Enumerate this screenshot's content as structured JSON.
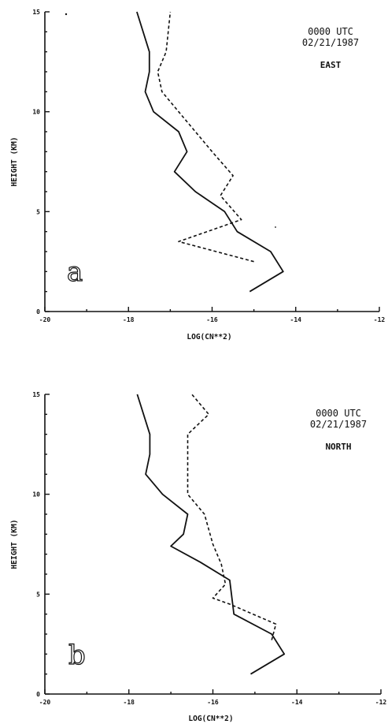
{
  "chart_data": [
    {
      "type": "line",
      "panel_label": "a",
      "annotation": [
        "0000 UTC",
        "02/21/1987",
        "EAST"
      ],
      "xlabel": "LOG(CN**2)",
      "ylabel": "HEIGHT (KM)",
      "xlim": [
        -20,
        -12
      ],
      "ylim": [
        0,
        15
      ],
      "xticks": [
        -20,
        -18,
        -16,
        -14,
        -12
      ],
      "xtick_labels": [
        "-20",
        "-18",
        "-16",
        "-14",
        "-12"
      ],
      "yticks": [
        0,
        5,
        10,
        15
      ],
      "ytick_labels": [
        "0",
        "5",
        "10",
        "15"
      ],
      "grid": false,
      "series": [
        {
          "style": "solid",
          "x": [
            -15.1,
            -14.3,
            -14.6,
            -15.4,
            -15.7,
            -16.4,
            -16.9,
            -16.6,
            -16.8,
            -17.4,
            -17.6,
            -17.5,
            -17.5,
            -17.8
          ],
          "y": [
            1,
            2,
            3,
            4,
            5,
            6,
            7,
            8,
            9,
            10,
            11,
            12,
            13,
            15
          ]
        },
        {
          "style": "dashed",
          "x": [
            -15.0,
            -16.8,
            -15.3,
            -15.8,
            -15.5,
            -16.0,
            -16.4,
            -16.8,
            -17.2,
            -17.3,
            -17.1,
            -17.0
          ],
          "y": [
            2.5,
            3.5,
            4.6,
            5.8,
            6.8,
            8,
            9,
            10,
            11,
            12,
            13,
            15
          ]
        }
      ]
    },
    {
      "type": "line",
      "panel_label": "b",
      "annotation": [
        "0000 UTC",
        "02/21/1987",
        "NORTH"
      ],
      "xlabel": "LOG(CN**2)",
      "ylabel": "HEIGHT (KM)",
      "xlim": [
        -20,
        -12
      ],
      "ylim": [
        0,
        15
      ],
      "xticks": [
        -20,
        -18,
        -16,
        -14,
        -12
      ],
      "xtick_labels": [
        "-20",
        "-18",
        "-16",
        "-14",
        "-12"
      ],
      "yticks": [
        0,
        5,
        10,
        15
      ],
      "ytick_labels": [
        "0",
        "5",
        "10",
        "15"
      ],
      "grid": false,
      "series": [
        {
          "style": "solid",
          "x": [
            -15.1,
            -14.3,
            -14.6,
            -15.5,
            -15.6,
            -16.3,
            -17.0,
            -16.7,
            -16.6,
            -17.2,
            -17.6,
            -17.5,
            -17.5,
            -17.8
          ],
          "y": [
            1,
            2,
            3,
            4,
            5.7,
            6.6,
            7.4,
            8,
            9,
            10,
            11,
            12,
            13,
            15
          ]
        },
        {
          "style": "dashed",
          "x": [
            -14.6,
            -14.5,
            -15.6,
            -16.0,
            -15.7,
            -15.8,
            -16.0,
            -16.2,
            -16.6,
            -16.6,
            -16.6,
            -16.1,
            -16.5
          ],
          "y": [
            2.7,
            3.5,
            4.5,
            4.8,
            5.5,
            6.5,
            7.5,
            9,
            10,
            11,
            13,
            14,
            15
          ]
        }
      ]
    }
  ]
}
